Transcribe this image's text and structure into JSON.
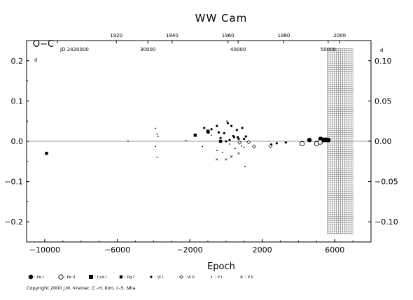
{
  "chart_data": {
    "type": "scatter",
    "title": "WW Cam",
    "xlabel": "Epoch",
    "ylabel": "O−C",
    "xlim": [
      -11000,
      8000
    ],
    "ylim": [
      -0.25,
      0.25
    ],
    "x_ticks": [
      -10000,
      -6000,
      -2000,
      2000,
      6000
    ],
    "x_tick_labels": [
      "−10000",
      "−6000",
      "−2000",
      "2000",
      "6000"
    ],
    "y_ticks_left": [
      -0.2,
      -0.1,
      0.0,
      0.1,
      0.2
    ],
    "y_tick_labels_left": [
      "−0.2",
      "−0.1",
      "0.0",
      "0.1",
      "0.2"
    ],
    "right_axis": {
      "scale_factor": 0.5,
      "ticks": [
        -0.1,
        -0.05,
        0.0,
        0.05,
        0.1
      ],
      "tick_labels": [
        "−0.10",
        "−0.05",
        "0.00",
        "0.05",
        "0.10"
      ],
      "units_label": "d"
    },
    "top_axis_year": {
      "ticks": [
        1920,
        1940,
        1960,
        1980,
        2000
      ],
      "epoch_positions": [
        -6050,
        -2970,
        110,
        3190,
        6270
      ]
    },
    "top_axis_jd": {
      "ticks": [
        20000,
        30000,
        40000,
        50000
      ],
      "tick_labels": [
        "JD 2420000",
        "30000",
        "40000",
        "50000"
      ],
      "epoch_positions": [
        -9300,
        -4310,
        670,
        5640
      ]
    },
    "units_label_left": "d",
    "grid": false,
    "zero_line": true,
    "hatched_region": {
      "x_from": 5600,
      "x_to": 7000,
      "y_from": -0.23,
      "y_to": 0.23
    },
    "series": [
      {
        "name": "Pe I",
        "marker": "filled-circle-large",
        "points": [
          [
            4600,
            0.003
          ],
          [
            5220,
            0.006
          ],
          [
            5350,
            0.004
          ],
          [
            5500,
            0.004
          ],
          [
            5650,
            0.003
          ]
        ]
      },
      {
        "name": "Pe II",
        "marker": "open-circle-large",
        "points": [
          [
            4200,
            -0.006
          ],
          [
            5000,
            -0.006
          ],
          [
            5200,
            -0.002
          ]
        ]
      },
      {
        "name": "Ccd I",
        "marker": "filled-square-large",
        "points": [
          [
            5400,
            0.003
          ],
          [
            5550,
            0.003
          ]
        ]
      },
      {
        "name": "Pg I",
        "marker": "filled-square",
        "points": [
          [
            -9900,
            -0.03
          ],
          [
            -1700,
            0.015
          ],
          [
            -1000,
            0.025
          ],
          [
            -980,
            0.023
          ],
          [
            -300,
            0.0
          ]
        ]
      },
      {
        "name": "Vi I",
        "marker": "filled-dot",
        "points": [
          [
            -1200,
            0.033
          ],
          [
            -800,
            0.03
          ],
          [
            -500,
            0.038
          ],
          [
            -100,
            0.02
          ],
          [
            100,
            0.045
          ],
          [
            300,
            0.038
          ],
          [
            600,
            0.028
          ],
          [
            900,
            0.033
          ],
          [
            1100,
            0.012
          ],
          [
            -300,
            0.008
          ],
          [
            0,
            0.0
          ],
          [
            200,
            0.003
          ],
          [
            450,
            0.01
          ],
          [
            700,
            0.006
          ],
          [
            1000,
            0.006
          ],
          [
            400,
            0.013
          ],
          [
            650,
            0.01
          ],
          [
            -400,
            0.022
          ],
          [
            2500,
            -0.008
          ],
          [
            2800,
            -0.005
          ],
          [
            3300,
            -0.003
          ]
        ]
      },
      {
        "name": "Vi II",
        "marker": "open-diamond",
        "points": [
          [
            1550,
            -0.013
          ],
          [
            2450,
            -0.012
          ],
          [
            750,
            -0.003
          ],
          [
            1250,
            -0.002
          ]
        ]
      },
      {
        "name": "P I",
        "marker": "small-dot",
        "points": [
          [
            -3900,
            0.032
          ],
          [
            -3800,
            0.018
          ],
          [
            -3750,
            0.012
          ],
          [
            -3900,
            -0.013
          ],
          [
            -3800,
            -0.04
          ],
          [
            -5400,
            0.0
          ],
          [
            -2200,
            0.002
          ],
          [
            -800,
            0.015
          ],
          [
            50,
            0.05
          ],
          [
            850,
            -0.012
          ],
          [
            1000,
            -0.015
          ],
          [
            1050,
            -0.063
          ],
          [
            -1300,
            -0.013
          ],
          [
            -500,
            -0.023
          ],
          [
            -200,
            -0.028
          ],
          [
            200,
            -0.007
          ],
          [
            500,
            -0.018
          ]
        ]
      },
      {
        "name": "P II",
        "marker": "cross",
        "points": [
          [
            -500,
            -0.045
          ],
          [
            0,
            -0.045
          ],
          [
            300,
            -0.038
          ],
          [
            700,
            -0.03
          ]
        ]
      }
    ],
    "legend": {
      "placement": "bottom",
      "entries": [
        {
          "label": ": Pe I",
          "marker": "filled-circle-large"
        },
        {
          "label": ": Pe II",
          "marker": "open-circle-large"
        },
        {
          "label": ": Ccd I",
          "marker": "filled-square-large"
        },
        {
          "label": ": Pg I",
          "marker": "filled-square"
        },
        {
          "label": ": Vi I",
          "marker": "filled-dot"
        },
        {
          "label": ": Vi II",
          "marker": "open-diamond"
        },
        {
          "label": ": P I",
          "marker": "small-dot"
        },
        {
          "label": ": P II",
          "marker": "cross"
        }
      ]
    },
    "copyright": "Copyright 2000 J.M. Kreiner, C.-H. Kim, I.-S. Nha"
  }
}
